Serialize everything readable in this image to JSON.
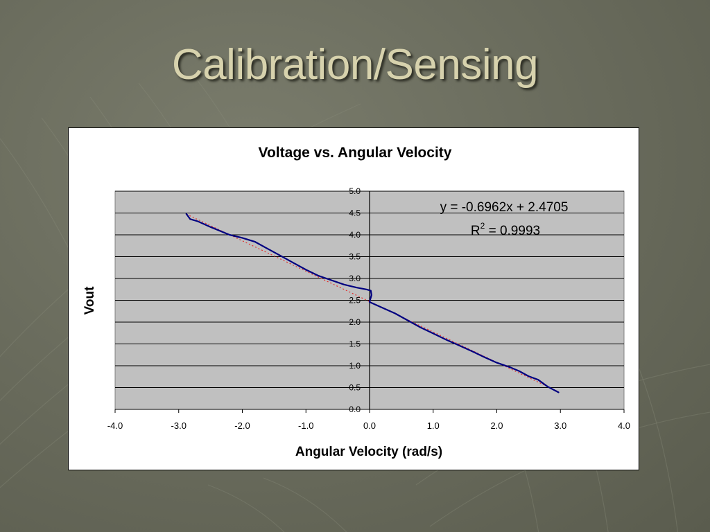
{
  "slide": {
    "title": "Calibration/Sensing"
  },
  "colors": {
    "plot_background": "#c0c0c0",
    "series_line": "#000080",
    "trendline": "#e03030",
    "gridline": "#000000",
    "title_text": "#d7d2ad"
  },
  "chart_data": {
    "type": "line",
    "title": "Voltage vs. Angular Velocity",
    "xlabel": "Angular Velocity (rad/s)",
    "ylabel": "Vout",
    "xlim": [
      -4.0,
      4.0
    ],
    "ylim": [
      0.0,
      5.0
    ],
    "x_ticks": [
      "-4.0",
      "-3.0",
      "-2.0",
      "-1.0",
      "0.0",
      "1.0",
      "2.0",
      "3.0",
      "4.0"
    ],
    "y_ticks": [
      "0.0",
      "0.5",
      "1.0",
      "1.5",
      "2.0",
      "2.5",
      "3.0",
      "3.5",
      "4.0",
      "4.5",
      "5.0"
    ],
    "grid": "horizontal major",
    "series": [
      {
        "x": [
          -2.88,
          -2.85,
          -2.82,
          -2.7,
          -2.5,
          -2.2,
          -2.0,
          -1.8,
          -1.6,
          -1.4,
          -1.2,
          -1.0,
          -0.8,
          -0.6,
          -0.4,
          -0.2,
          -0.05,
          0.02,
          0.03,
          0.0,
          0.2,
          0.4,
          0.6,
          0.8,
          1.0,
          1.2,
          1.4,
          1.6,
          1.8,
          2.0,
          2.2,
          2.35,
          2.5,
          2.65,
          2.8,
          2.97
        ],
        "y": [
          4.48,
          4.42,
          4.36,
          4.31,
          4.18,
          4.0,
          3.93,
          3.84,
          3.68,
          3.52,
          3.36,
          3.2,
          3.06,
          2.96,
          2.86,
          2.79,
          2.75,
          2.72,
          2.62,
          2.46,
          2.33,
          2.2,
          2.04,
          1.88,
          1.74,
          1.6,
          1.47,
          1.34,
          1.2,
          1.07,
          0.97,
          0.88,
          0.76,
          0.68,
          0.52,
          0.39
        ]
      }
    ],
    "trendline": {
      "slope": -0.6962,
      "intercept": 2.4705,
      "x_range": [
        -2.88,
        2.97
      ],
      "equation": "y = -0.6962x + 2.4705",
      "r2_prefix": "R",
      "r2_sup": "2",
      "r2_value": " = 0.9993"
    }
  }
}
